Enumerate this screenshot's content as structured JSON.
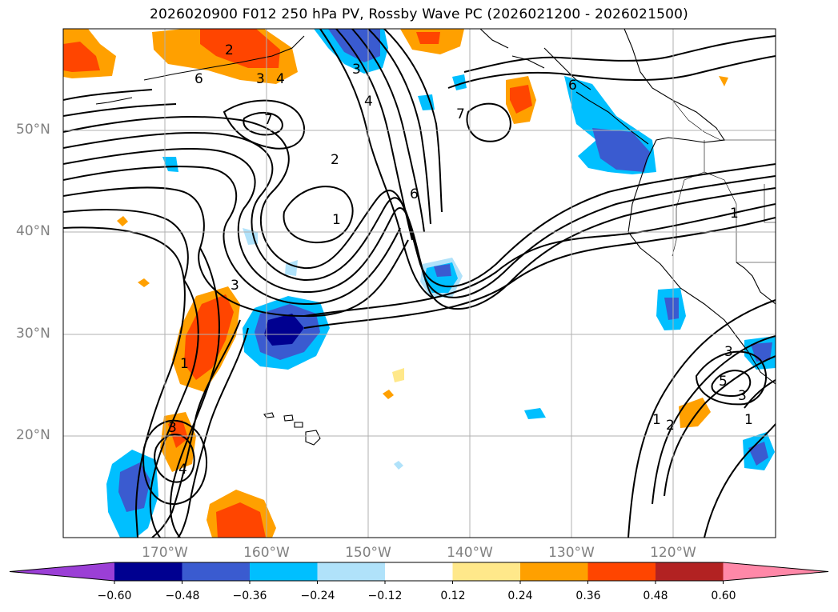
{
  "title": "2026020900 F012 250 hPa PV, Rossby Wave PC (2026021200 - 2026021500)",
  "lat_labels": [
    "50°N",
    "40°N",
    "30°N",
    "20°N"
  ],
  "lon_labels": [
    "170°W",
    "160°W",
    "150°W",
    "140°W",
    "130°W",
    "120°W"
  ],
  "colorbar": {
    "ticks": [
      "−0.60",
      "−0.48",
      "−0.36",
      "−0.24",
      "−0.12",
      "0.12",
      "0.24",
      "0.36",
      "0.48",
      "0.60"
    ],
    "colors": [
      "#9b3fd6",
      "#000090",
      "#3a5bd0",
      "#00bfff",
      "#b0e2fa",
      "#ffffff",
      "#ffe88a",
      "#ffa000",
      "#ff4500",
      "#b22222",
      "#ff88a8"
    ]
  },
  "contour_labels": [
    "2",
    "6",
    "3",
    "4",
    "7",
    "3",
    "4",
    "2",
    "1",
    "6",
    "7",
    "6",
    "1",
    "3",
    "1",
    "3",
    "4",
    "1",
    "2",
    "3",
    "5",
    "3",
    "1"
  ]
}
